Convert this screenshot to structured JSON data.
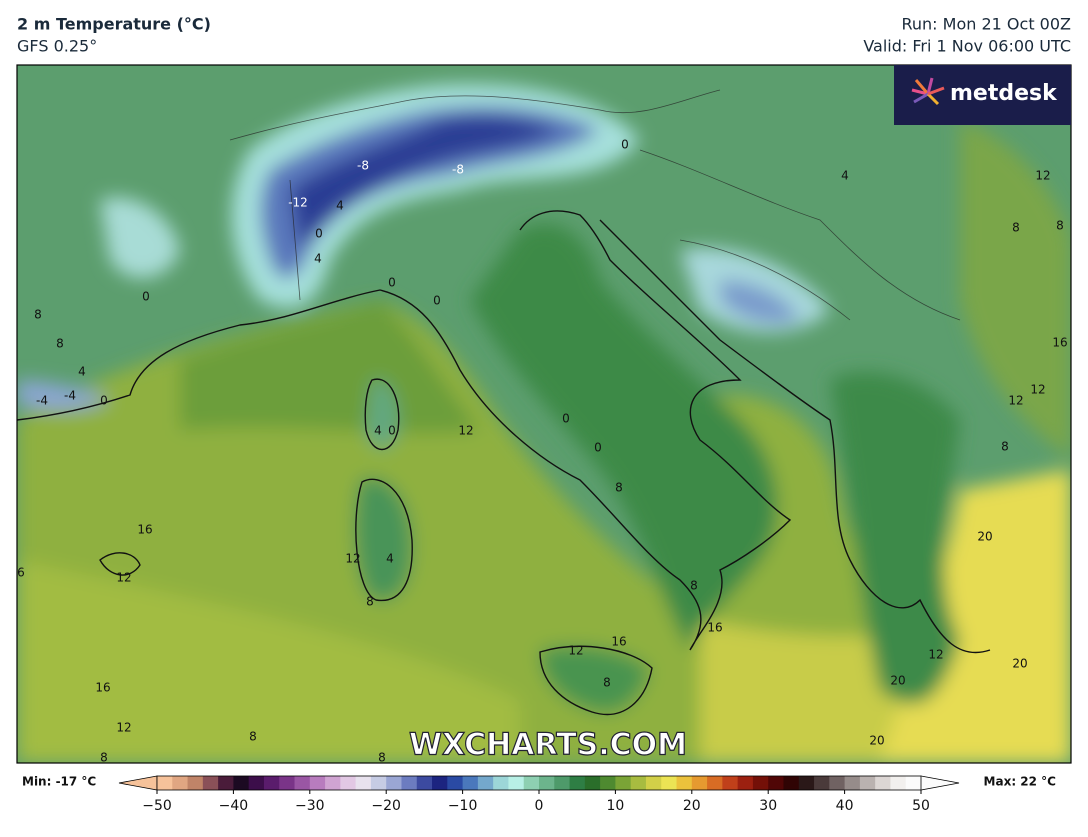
{
  "header": {
    "title": "2 m Temperature (°C)",
    "model": "GFS 0.25°",
    "run": "Run: Mon 21 Oct 00Z",
    "valid": "Valid: Fri 1 Nov 06:00 UTC"
  },
  "logo": "metdesk",
  "watermark": "WXCHARTS.COM",
  "contour_labels": [
    0,
    4,
    12,
    8,
    8,
    16,
    12,
    12,
    8,
    -8,
    -8,
    -12,
    4,
    0,
    4,
    0,
    0,
    0,
    8,
    8,
    4,
    -4,
    -4,
    0,
    4,
    0,
    12,
    0,
    0,
    8,
    16,
    12,
    6,
    12,
    4,
    8,
    8,
    16,
    16,
    12,
    8,
    16,
    12,
    8,
    8,
    8,
    20,
    20,
    12,
    20,
    20
  ],
  "colorbar": {
    "min_label": "Min: -17 °C",
    "max_label": "Max: 22 °C",
    "range": [
      -50,
      50
    ],
    "ticks": [
      {
        "value": -50,
        "label": "−50"
      },
      {
        "value": -40,
        "label": "−40"
      },
      {
        "value": -30,
        "label": "−30"
      },
      {
        "value": -20,
        "label": "−20"
      },
      {
        "value": -10,
        "label": "−10"
      },
      0,
      10,
      20,
      30,
      40,
      50
    ],
    "colors": [
      "#f6c29a",
      "#e0a682",
      "#c08468",
      "#8a5058",
      "#4a1c3a",
      "#1c0a22",
      "#3c0e4a",
      "#5a1c6c",
      "#7a3488",
      "#9a56a4",
      "#b87cbe",
      "#d0a4d2",
      "#e2c8e4",
      "#e8e2ee",
      "#c6cce4",
      "#9aa6d4",
      "#6c7cc0",
      "#3c4aa0",
      "#1c2480",
      "#2a4aa4",
      "#4a78bc",
      "#74a8cc",
      "#9cd6d8",
      "#b8f0e6",
      "#8ed0b2",
      "#6cb48c",
      "#4e9a6a",
      "#2e7e44",
      "#2a6e2a",
      "#4e8a30",
      "#7aa436",
      "#a8bc40",
      "#d2d048",
      "#ece454",
      "#ecc23c",
      "#e69a30",
      "#d86c24",
      "#c0401a",
      "#9c2010",
      "#741008",
      "#500606",
      "#300404",
      "#2a1818",
      "#4a3a3a",
      "#706262",
      "#968c8a",
      "#bab2b0",
      "#dcd6d4",
      "#f2f0ee",
      "#fbfbfb"
    ]
  }
}
